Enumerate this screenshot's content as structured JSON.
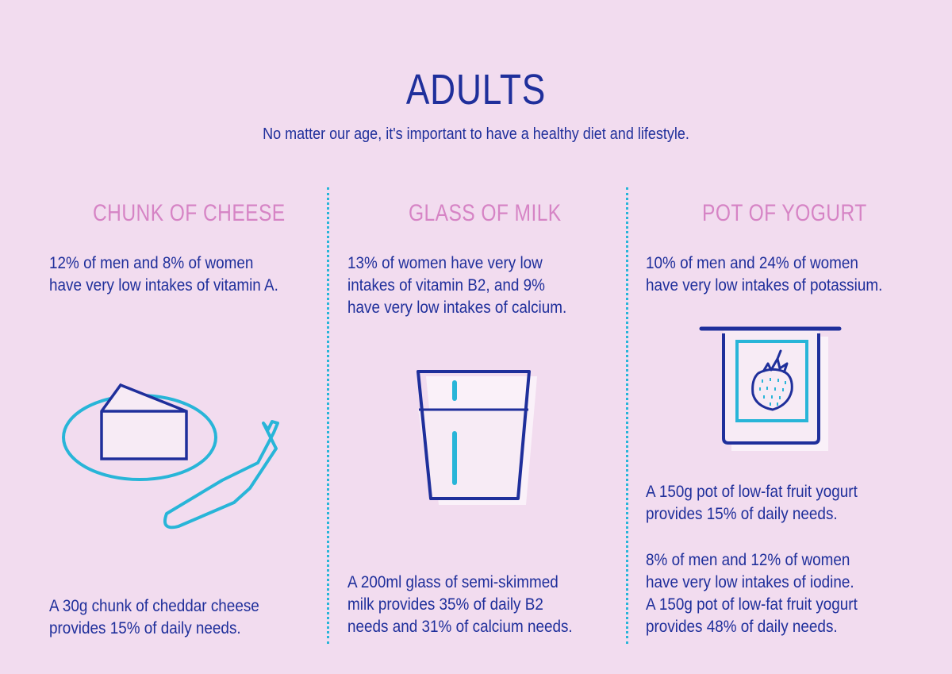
{
  "header": {
    "title": "ADULTS",
    "subtitle": "No matter our age, it's important to have a healthy diet and lifestyle."
  },
  "colors": {
    "background": "#f2dcef",
    "navy": "#1f2f9b",
    "pink": "#d684c5",
    "cyan": "#28b5d8"
  },
  "columns": [
    {
      "title": "CHUNK OF CHEESE",
      "fact_lines": [
        "12% of men and 8% of women",
        "have very low intakes of vitamin A."
      ],
      "provides_lines": [
        "A 30g chunk of cheddar cheese",
        "provides 15% of daily needs."
      ],
      "icon": "cheese-icon"
    },
    {
      "title": "GLASS OF MILK",
      "fact_lines": [
        "13% of women have very low",
        "intakes of vitamin B2, and 9%",
        "have very low intakes of calcium."
      ],
      "provides_lines": [
        "A 200ml glass of semi-skimmed",
        "milk provides 35% of daily B2",
        "needs and 31% of calcium needs."
      ],
      "icon": "milk-glass-icon"
    },
    {
      "title": "POT OF YOGURT",
      "fact_lines": [
        "10% of men and 24% of women",
        "have very low intakes of potassium."
      ],
      "provides_lines": [
        "A 150g pot of low-fat fruit yogurt",
        "provides 15% of daily needs."
      ],
      "extra_lines": [
        "8% of men and 12% of women",
        "have very low intakes of iodine.",
        "A 150g pot of low-fat fruit yogurt",
        "provides 48% of daily needs."
      ],
      "icon": "yogurt-pot-icon"
    }
  ]
}
